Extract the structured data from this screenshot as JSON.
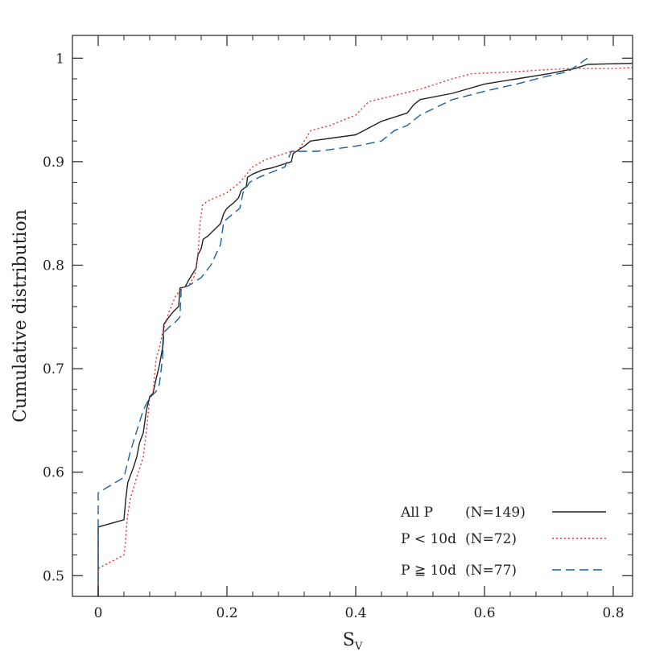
{
  "chart_data": {
    "type": "line",
    "title": "",
    "xlabel": "S",
    "xlabel_sub": "V",
    "ylabel": "Cumulative distribution",
    "xlim": [
      -0.04,
      0.83
    ],
    "ylim": [
      0.48,
      1.022
    ],
    "xticks": [
      0,
      0.2,
      0.4,
      0.6,
      0.8
    ],
    "xtick_labels": [
      "0",
      "0.2",
      "0.4",
      "0.6",
      "0.8"
    ],
    "yticks": [
      0.5,
      0.6,
      0.7,
      0.8,
      0.9,
      1
    ],
    "ytick_labels": [
      "0.5",
      "0.6",
      "0.7",
      "0.8",
      "0.9",
      "1"
    ],
    "grid": false,
    "legend_position": "bottom-right",
    "series": [
      {
        "name": "All P",
        "count_label": "(N=149)",
        "style": "solid",
        "color": "#222222",
        "points": [
          [
            0,
            0.48
          ],
          [
            0,
            0.547
          ],
          [
            0.04,
            0.554
          ],
          [
            0.043,
            0.575
          ],
          [
            0.046,
            0.59
          ],
          [
            0.055,
            0.605
          ],
          [
            0.06,
            0.615
          ],
          [
            0.064,
            0.628
          ],
          [
            0.07,
            0.638
          ],
          [
            0.075,
            0.66
          ],
          [
            0.08,
            0.673
          ],
          [
            0.085,
            0.676
          ],
          [
            0.09,
            0.69
          ],
          [
            0.095,
            0.703
          ],
          [
            0.1,
            0.72
          ],
          [
            0.102,
            0.743
          ],
          [
            0.11,
            0.75
          ],
          [
            0.118,
            0.756
          ],
          [
            0.125,
            0.76
          ],
          [
            0.127,
            0.778
          ],
          [
            0.135,
            0.779
          ],
          [
            0.14,
            0.785
          ],
          [
            0.145,
            0.79
          ],
          [
            0.152,
            0.797
          ],
          [
            0.155,
            0.81
          ],
          [
            0.16,
            0.816
          ],
          [
            0.163,
            0.825
          ],
          [
            0.17,
            0.828
          ],
          [
            0.18,
            0.834
          ],
          [
            0.19,
            0.84
          ],
          [
            0.195,
            0.85
          ],
          [
            0.2,
            0.855
          ],
          [
            0.21,
            0.86
          ],
          [
            0.218,
            0.865
          ],
          [
            0.222,
            0.872
          ],
          [
            0.23,
            0.876
          ],
          [
            0.232,
            0.885
          ],
          [
            0.24,
            0.888
          ],
          [
            0.255,
            0.892
          ],
          [
            0.27,
            0.894
          ],
          [
            0.29,
            0.898
          ],
          [
            0.3,
            0.9
          ],
          [
            0.303,
            0.908
          ],
          [
            0.32,
            0.915
          ],
          [
            0.33,
            0.92
          ],
          [
            0.4,
            0.926
          ],
          [
            0.44,
            0.939
          ],
          [
            0.48,
            0.947
          ],
          [
            0.49,
            0.955
          ],
          [
            0.5,
            0.96
          ],
          [
            0.55,
            0.966
          ],
          [
            0.6,
            0.975
          ],
          [
            0.65,
            0.98
          ],
          [
            0.7,
            0.985
          ],
          [
            0.74,
            0.99
          ],
          [
            0.76,
            0.994
          ],
          [
            0.83,
            0.995
          ]
        ]
      },
      {
        "name": "P < 10d",
        "count_label": "(N=72)",
        "style": "dotted",
        "color": "#e03030",
        "points": [
          [
            0,
            0.48
          ],
          [
            0,
            0.507
          ],
          [
            0.04,
            0.52
          ],
          [
            0.042,
            0.53
          ],
          [
            0.045,
            0.555
          ],
          [
            0.05,
            0.575
          ],
          [
            0.055,
            0.585
          ],
          [
            0.06,
            0.595
          ],
          [
            0.065,
            0.605
          ],
          [
            0.07,
            0.615
          ],
          [
            0.072,
            0.625
          ],
          [
            0.075,
            0.64
          ],
          [
            0.08,
            0.672
          ],
          [
            0.085,
            0.675
          ],
          [
            0.09,
            0.71
          ],
          [
            0.095,
            0.72
          ],
          [
            0.1,
            0.735
          ],
          [
            0.105,
            0.745
          ],
          [
            0.11,
            0.755
          ],
          [
            0.12,
            0.77
          ],
          [
            0.13,
            0.778
          ],
          [
            0.14,
            0.78
          ],
          [
            0.15,
            0.79
          ],
          [
            0.155,
            0.81
          ],
          [
            0.158,
            0.84
          ],
          [
            0.162,
            0.858
          ],
          [
            0.17,
            0.862
          ],
          [
            0.2,
            0.87
          ],
          [
            0.22,
            0.88
          ],
          [
            0.24,
            0.895
          ],
          [
            0.26,
            0.902
          ],
          [
            0.3,
            0.91
          ],
          [
            0.31,
            0.91
          ],
          [
            0.32,
            0.92
          ],
          [
            0.33,
            0.93
          ],
          [
            0.36,
            0.935
          ],
          [
            0.4,
            0.945
          ],
          [
            0.42,
            0.958
          ],
          [
            0.5,
            0.97
          ],
          [
            0.55,
            0.98
          ],
          [
            0.58,
            0.985
          ],
          [
            0.65,
            0.987
          ],
          [
            0.7,
            0.989
          ],
          [
            0.73,
            0.99
          ],
          [
            0.8,
            0.99
          ],
          [
            0.83,
            0.991
          ]
        ]
      },
      {
        "name": "P ≧ 10d",
        "count_label": "(N=77)",
        "style": "dashed",
        "color": "#1a5fa0",
        "points": [
          [
            0,
            0.48
          ],
          [
            0,
            0.58
          ],
          [
            0.04,
            0.595
          ],
          [
            0.05,
            0.62
          ],
          [
            0.055,
            0.63
          ],
          [
            0.06,
            0.64
          ],
          [
            0.07,
            0.66
          ],
          [
            0.08,
            0.672
          ],
          [
            0.09,
            0.678
          ],
          [
            0.095,
            0.685
          ],
          [
            0.1,
            0.71
          ],
          [
            0.102,
            0.735
          ],
          [
            0.11,
            0.74
          ],
          [
            0.12,
            0.745
          ],
          [
            0.127,
            0.75
          ],
          [
            0.129,
            0.778
          ],
          [
            0.14,
            0.78
          ],
          [
            0.16,
            0.788
          ],
          [
            0.175,
            0.8
          ],
          [
            0.19,
            0.82
          ],
          [
            0.195,
            0.842
          ],
          [
            0.21,
            0.85
          ],
          [
            0.22,
            0.855
          ],
          [
            0.225,
            0.87
          ],
          [
            0.23,
            0.875
          ],
          [
            0.235,
            0.88
          ],
          [
            0.25,
            0.885
          ],
          [
            0.29,
            0.895
          ],
          [
            0.3,
            0.91
          ],
          [
            0.34,
            0.91
          ],
          [
            0.4,
            0.915
          ],
          [
            0.44,
            0.92
          ],
          [
            0.46,
            0.93
          ],
          [
            0.48,
            0.935
          ],
          [
            0.5,
            0.945
          ],
          [
            0.55,
            0.96
          ],
          [
            0.6,
            0.968
          ],
          [
            0.65,
            0.975
          ],
          [
            0.7,
            0.983
          ],
          [
            0.73,
            0.987
          ],
          [
            0.76,
            1.0
          ]
        ]
      }
    ]
  }
}
